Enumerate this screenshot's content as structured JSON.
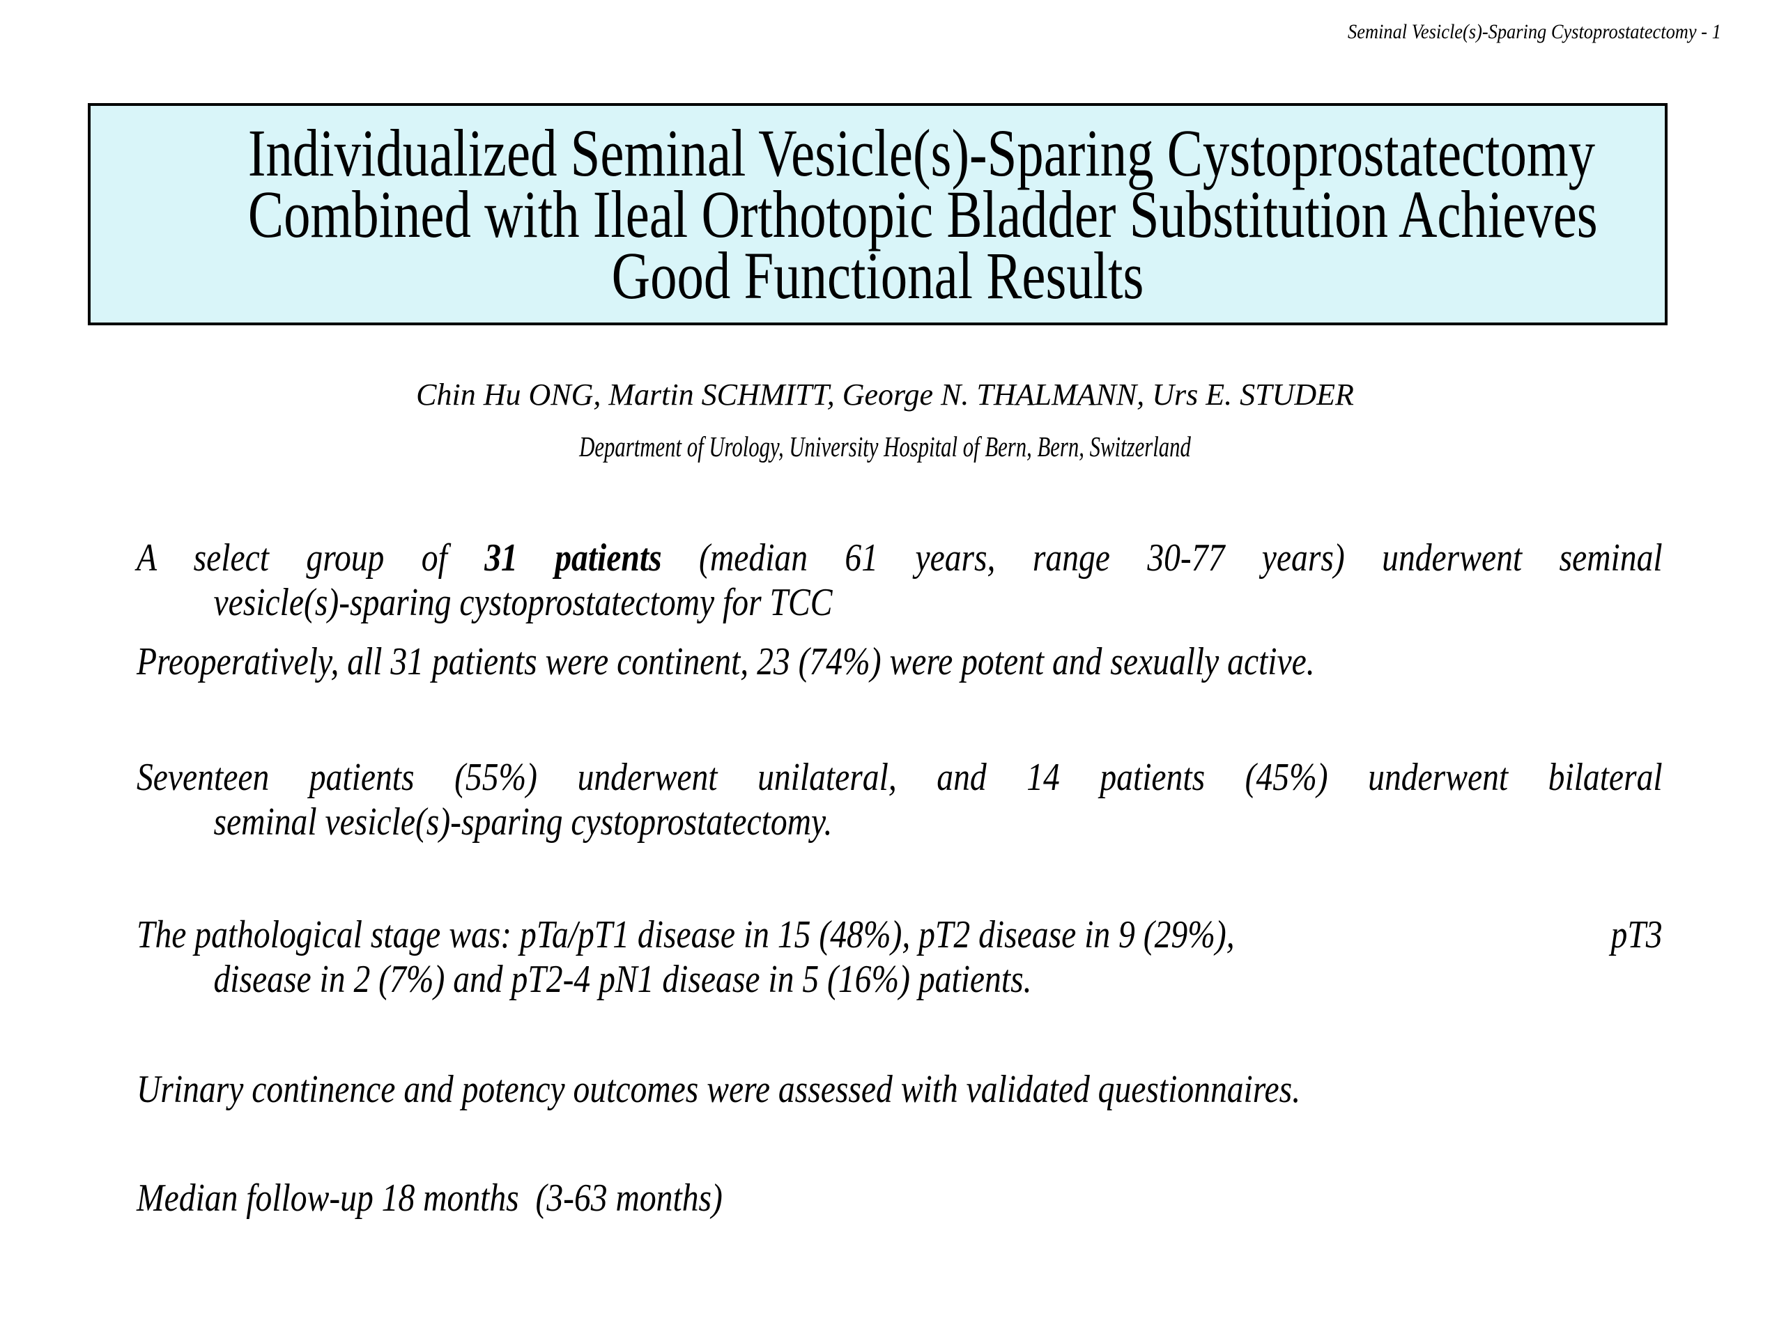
{
  "colors": {
    "bg": "#ffffff",
    "text_color": "#000000",
    "box_fill": "#d9f5f9",
    "box_border": "#000000"
  },
  "slide": {
    "page_header": "Seminal Vesicle(s)-Sparing Cystoprostatectomy - 1",
    "title_box": {
      "lines": [
        "Individualized Seminal Vesicle(s)-Sparing Cystoprostatectomy",
        "Combined with Ileal Orthotopic Bladder Substitution Achieves",
        "Good Functional Results"
      ]
    },
    "authors": "Chin Hu ONG, Martin SCHMITT, George N. THALMANN, Urs E. STUDER",
    "affiliation": "Department of Urology, University Hospital of Bern, Bern, Switzerland",
    "body": {
      "p1": {
        "l1_pre": "A select group of ",
        "l1_bold": "31 patients",
        "l1_post": " (median 61 years, range 30-77 years) underwent seminal",
        "l2": "vesicle(s)-sparing cystoprostatectomy for TCC"
      },
      "p2": "Preoperatively, all 31 patients were continent, 23 (74%) were potent and sexually active.",
      "p3": {
        "l1": "Seventeen patients (55%) underwent unilateral, and 14 patients (45%) underwent bilateral",
        "l2": "seminal vesicle(s)-sparing cystoprostatectomy."
      },
      "p4": {
        "l1_left": "The pathological stage was: pTa/pT1 disease in 15 (48%), pT2 disease in 9 (29%),",
        "l1_right": "pT3",
        "l2": "disease in 2 (7%) and pT2-4 pN1 disease in 5 (16%) patients."
      },
      "p5": "Urinary continence and potency outcomes were assessed with validated questionnaires.",
      "p6": "Median follow-up 18 months  (3-63 months)"
    }
  }
}
